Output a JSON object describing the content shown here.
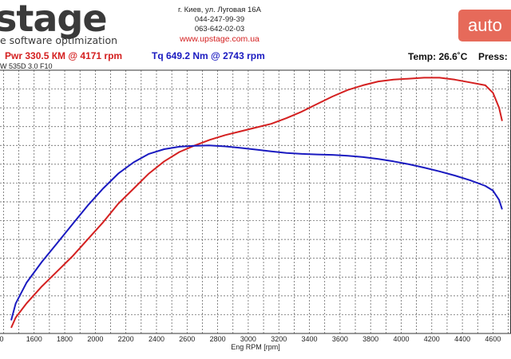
{
  "header": {
    "logo": "stage",
    "tagline": "e software optimization",
    "address": "г. Киев, ул. Луговая 16А",
    "phone1": "044-247-99-39",
    "phone2": "063-642-02-03",
    "website": "www.upstage.com.ua",
    "watermark": "auto"
  },
  "summary": {
    "power": "Pwr  330.5 КМ @ 4171 rpm",
    "torque": "Tq 649.2 Nm @ 2743 rpm",
    "temp": "Temp: 26.6˚C",
    "press": "Press:",
    "model": "W 535D 3.0 F10"
  },
  "chart_data": {
    "type": "line",
    "title": "",
    "xlabel": "Eng RPM [rpm]",
    "ylabel": "",
    "xlim": [
      1400,
      4700
    ],
    "ylim": [
      0,
      14
    ],
    "x_ticks": [
      1600,
      1800,
      2000,
      2200,
      2400,
      2600,
      2800,
      3000,
      3200,
      3400,
      3600,
      3800,
      4000,
      4200,
      4400,
      4600
    ],
    "x_tick_labels": [
      "1600",
      "1800",
      "2000",
      "2200",
      "2400",
      "2600",
      "2800",
      "3000",
      "3200",
      "3400",
      "3600",
      "3800",
      "4000",
      "4200",
      "4400",
      "4600"
    ],
    "x_tick_label_partial": "0",
    "grid": true,
    "series": [
      {
        "name": "Power",
        "color": "#d42020",
        "x": [
          1450,
          1480,
          1550,
          1650,
          1750,
          1850,
          1950,
          2050,
          2150,
          2250,
          2350,
          2450,
          2550,
          2650,
          2750,
          2850,
          2950,
          3050,
          3150,
          3250,
          3350,
          3450,
          3550,
          3650,
          3750,
          3850,
          3950,
          4050,
          4150,
          4171,
          4250,
          4350,
          4450,
          4550,
          4600,
          4640,
          4660
        ],
        "y": [
          0.3,
          0.85,
          1.6,
          2.5,
          3.3,
          4.1,
          5.0,
          5.9,
          6.9,
          7.7,
          8.5,
          9.15,
          9.65,
          10.0,
          10.3,
          10.55,
          10.75,
          10.95,
          11.15,
          11.45,
          11.8,
          12.2,
          12.6,
          12.95,
          13.2,
          13.4,
          13.5,
          13.55,
          13.6,
          13.6,
          13.6,
          13.5,
          13.35,
          13.2,
          12.8,
          12.0,
          11.3
        ]
      },
      {
        "name": "Torque",
        "color": "#1a1ac0",
        "x": [
          1450,
          1480,
          1550,
          1650,
          1750,
          1850,
          1950,
          2050,
          2150,
          2250,
          2350,
          2450,
          2550,
          2650,
          2743,
          2850,
          2950,
          3050,
          3150,
          3250,
          3350,
          3450,
          3550,
          3650,
          3750,
          3850,
          3950,
          4050,
          4150,
          4250,
          4350,
          4450,
          4550,
          4600,
          4640,
          4660
        ],
        "y": [
          0.7,
          1.6,
          2.7,
          3.8,
          4.8,
          5.8,
          6.8,
          7.7,
          8.5,
          9.1,
          9.55,
          9.8,
          9.93,
          9.98,
          10.0,
          9.95,
          9.87,
          9.78,
          9.68,
          9.6,
          9.55,
          9.52,
          9.5,
          9.45,
          9.38,
          9.28,
          9.15,
          9.0,
          8.82,
          8.62,
          8.4,
          8.15,
          7.85,
          7.6,
          7.1,
          6.6
        ]
      }
    ]
  }
}
